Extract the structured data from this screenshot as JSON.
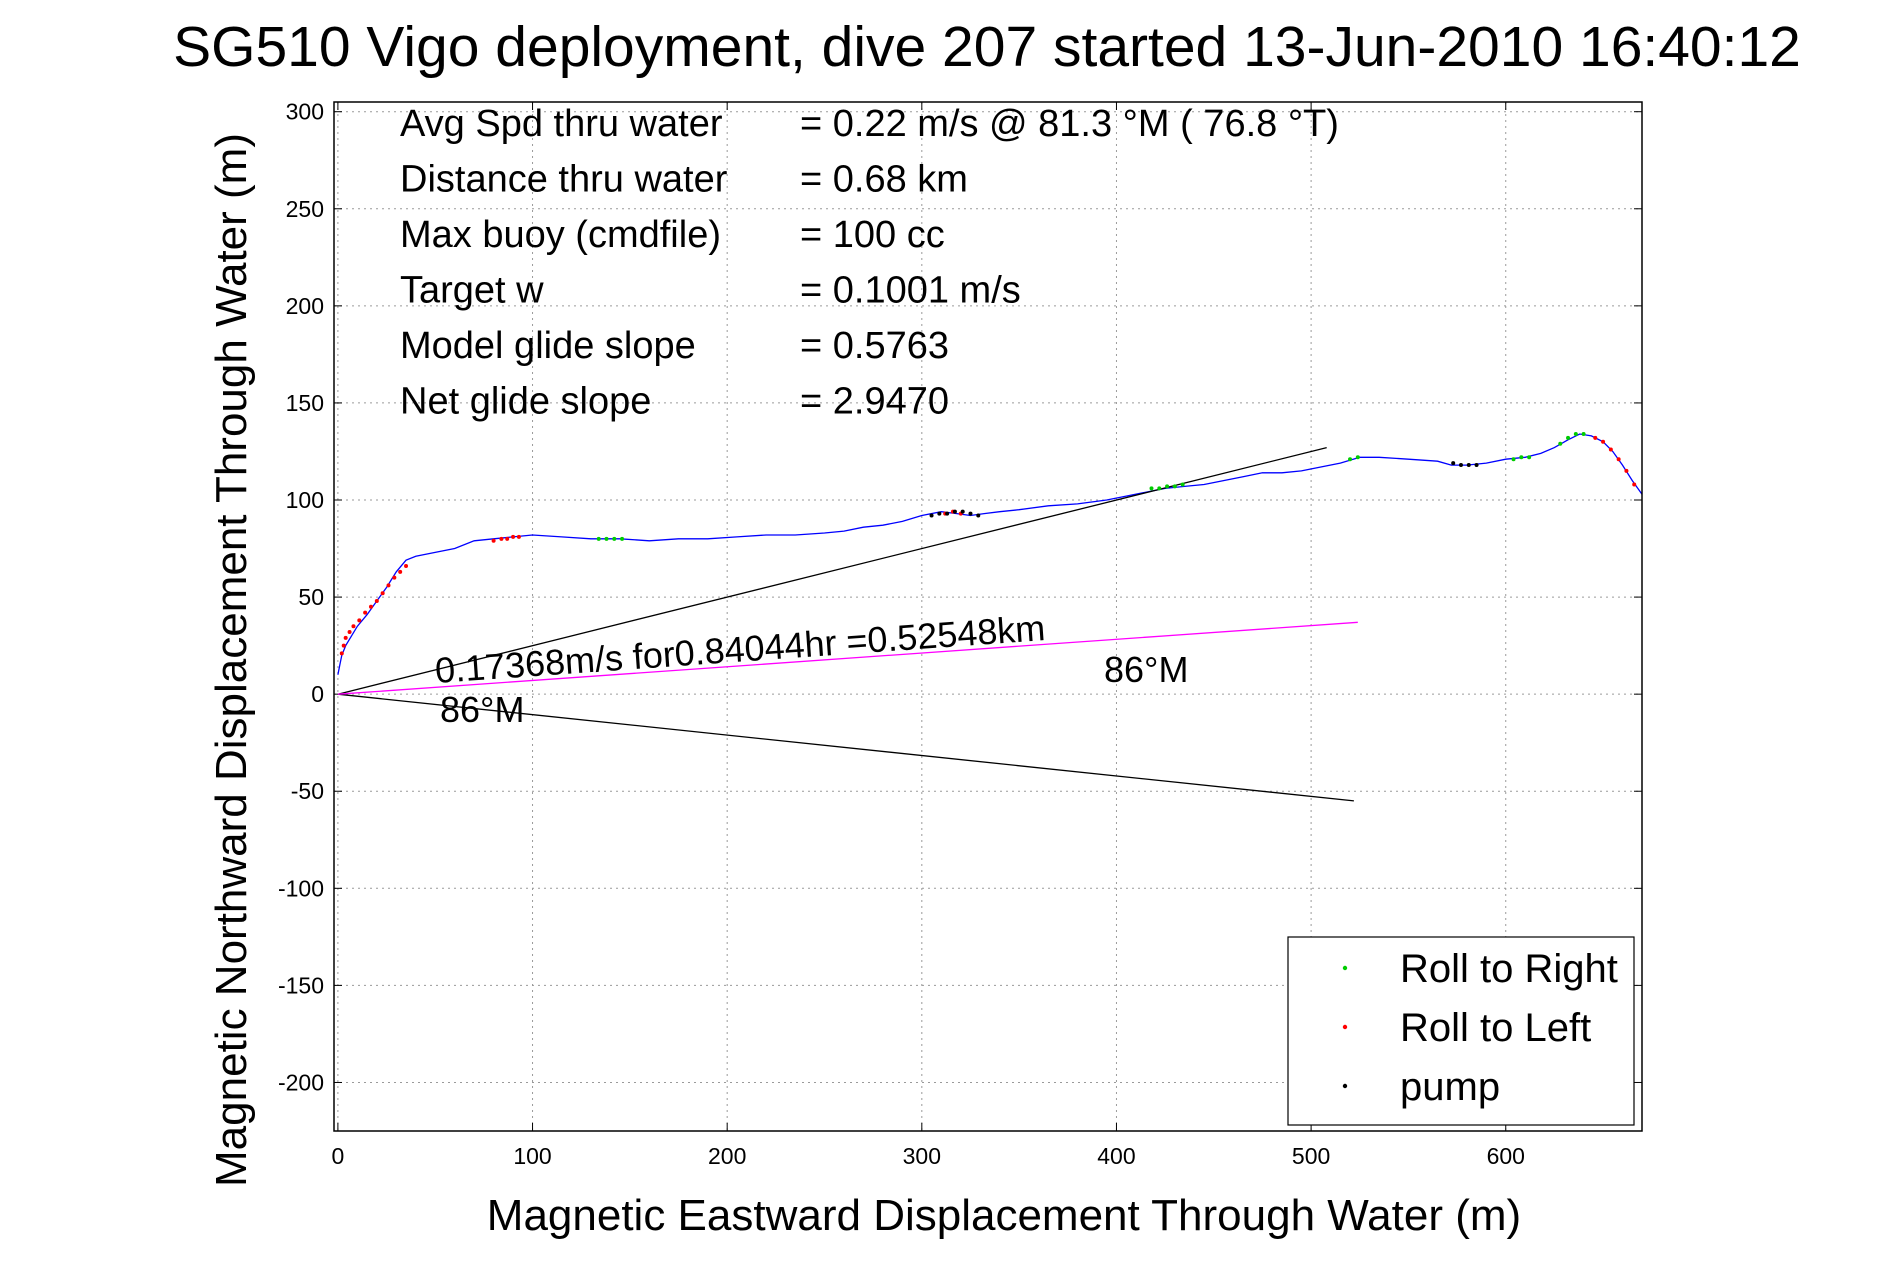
{
  "chart_data": {
    "type": "line",
    "title": "SG510 Vigo deployment, dive 207 started 13-Jun-2010 16:40:12",
    "xlabel": "Magnetic Eastward Displacement Through Water (m)",
    "ylabel": "Magnetic Northward Displacement Through Water (m)",
    "xlim": [
      -2,
      670
    ],
    "ylim": [
      -225,
      305
    ],
    "xticks": [
      0,
      100,
      200,
      300,
      400,
      500,
      600
    ],
    "yticks": [
      -200,
      -150,
      -100,
      -50,
      0,
      50,
      100,
      150,
      200,
      250,
      300
    ],
    "grid": true,
    "legend_position": "bottom-right",
    "legend": [
      {
        "label": "Roll to Right",
        "color": "#00cc00"
      },
      {
        "label": "Roll to Left",
        "color": "#ff0000"
      },
      {
        "label": "pump",
        "color": "#000000"
      }
    ],
    "stats": [
      {
        "label": "Avg Spd thru water",
        "value": "=  0.22 m/s @  81.3 °M ( 76.8 °T)"
      },
      {
        "label": "Distance thru water",
        "value": "=  0.68 km"
      },
      {
        "label": "Max buoy (cmdfile)",
        "value": "= 100 cc"
      },
      {
        "label": "Target w",
        "value": "= 0.1001 m/s"
      },
      {
        "label": "Model glide slope",
        "value": "= 0.5763"
      },
      {
        "label": "Net glide slope",
        "value": "= 2.9470"
      }
    ],
    "annotations": {
      "current": "0.17368m/s for0.84044hr =0.52548km",
      "heading_start": "86°M",
      "heading_end": "86°M"
    },
    "series": [
      {
        "kind": "track",
        "color": "#0000ff",
        "x": [
          0,
          1,
          2,
          4,
          7,
          10,
          15,
          20,
          25,
          30,
          35,
          40,
          50,
          60,
          70,
          80,
          90,
          100,
          115,
          130,
          145,
          160,
          175,
          190,
          205,
          220,
          235,
          250,
          260,
          270,
          280,
          290,
          300,
          310,
          318,
          325,
          332,
          340,
          350,
          365,
          380,
          395,
          405,
          415,
          425,
          435,
          445,
          455,
          465,
          475,
          485,
          495,
          505,
          515,
          525,
          535,
          550,
          565,
          572,
          580,
          590,
          600,
          610,
          618,
          625,
          632,
          638,
          644,
          650,
          655,
          660,
          665,
          670
        ],
        "y": [
          10,
          15,
          20,
          25,
          30,
          35,
          41,
          48,
          55,
          63,
          69,
          71,
          73,
          75,
          79,
          80,
          81,
          82,
          81,
          80,
          80,
          79,
          80,
          80,
          81,
          82,
          82,
          83,
          84,
          86,
          87,
          89,
          92,
          94,
          93,
          92,
          93,
          94,
          95,
          97,
          98,
          100,
          102,
          104,
          106,
          107,
          108,
          110,
          112,
          114,
          114,
          115,
          117,
          119,
          122,
          122,
          121,
          120,
          118,
          118,
          119,
          121,
          122,
          124,
          127,
          131,
          134,
          133,
          130,
          125,
          118,
          110,
          103
        ]
      },
      {
        "kind": "glide-slope-upper",
        "color": "#000000",
        "x": [
          0,
          508
        ],
        "y": [
          0,
          127
        ]
      },
      {
        "kind": "glide-slope-lower",
        "color": "#000000",
        "x": [
          0,
          522
        ],
        "y": [
          0,
          -55
        ]
      },
      {
        "kind": "current",
        "color": "#ff00ff",
        "x": [
          0,
          524
        ],
        "y": [
          0,
          37
        ]
      }
    ],
    "markers": [
      {
        "name": "Roll to Left",
        "color": "#ff0000",
        "x": [
          2,
          3,
          4,
          6,
          8,
          11,
          14,
          17,
          20,
          23,
          26,
          29,
          32,
          35,
          80,
          84,
          87,
          90,
          93,
          312,
          316,
          320,
          646,
          650,
          654,
          658,
          662,
          666
        ],
        "y": [
          21,
          25,
          29,
          32,
          35,
          38,
          42,
          45,
          48,
          52,
          56,
          60,
          63,
          66,
          79,
          80,
          80,
          81,
          81,
          93,
          94,
          93,
          132,
          130,
          126,
          121,
          115,
          108
        ]
      },
      {
        "name": "Roll to Right",
        "color": "#00cc00",
        "x": [
          134,
          138,
          142,
          146,
          418,
          422,
          426,
          430,
          434,
          520,
          524,
          604,
          608,
          612,
          628,
          632,
          636,
          640
        ],
        "y": [
          80,
          80,
          80,
          80,
          106,
          106,
          107,
          107,
          108,
          121,
          122,
          121,
          122,
          122,
          129,
          132,
          134,
          134
        ]
      },
      {
        "name": "pump",
        "color": "#000000",
        "x": [
          305,
          309,
          313,
          317,
          321,
          325,
          329,
          573,
          577,
          581,
          585
        ],
        "y": [
          92,
          93,
          93,
          94,
          94,
          93,
          92,
          119,
          118,
          118,
          118
        ]
      }
    ]
  }
}
